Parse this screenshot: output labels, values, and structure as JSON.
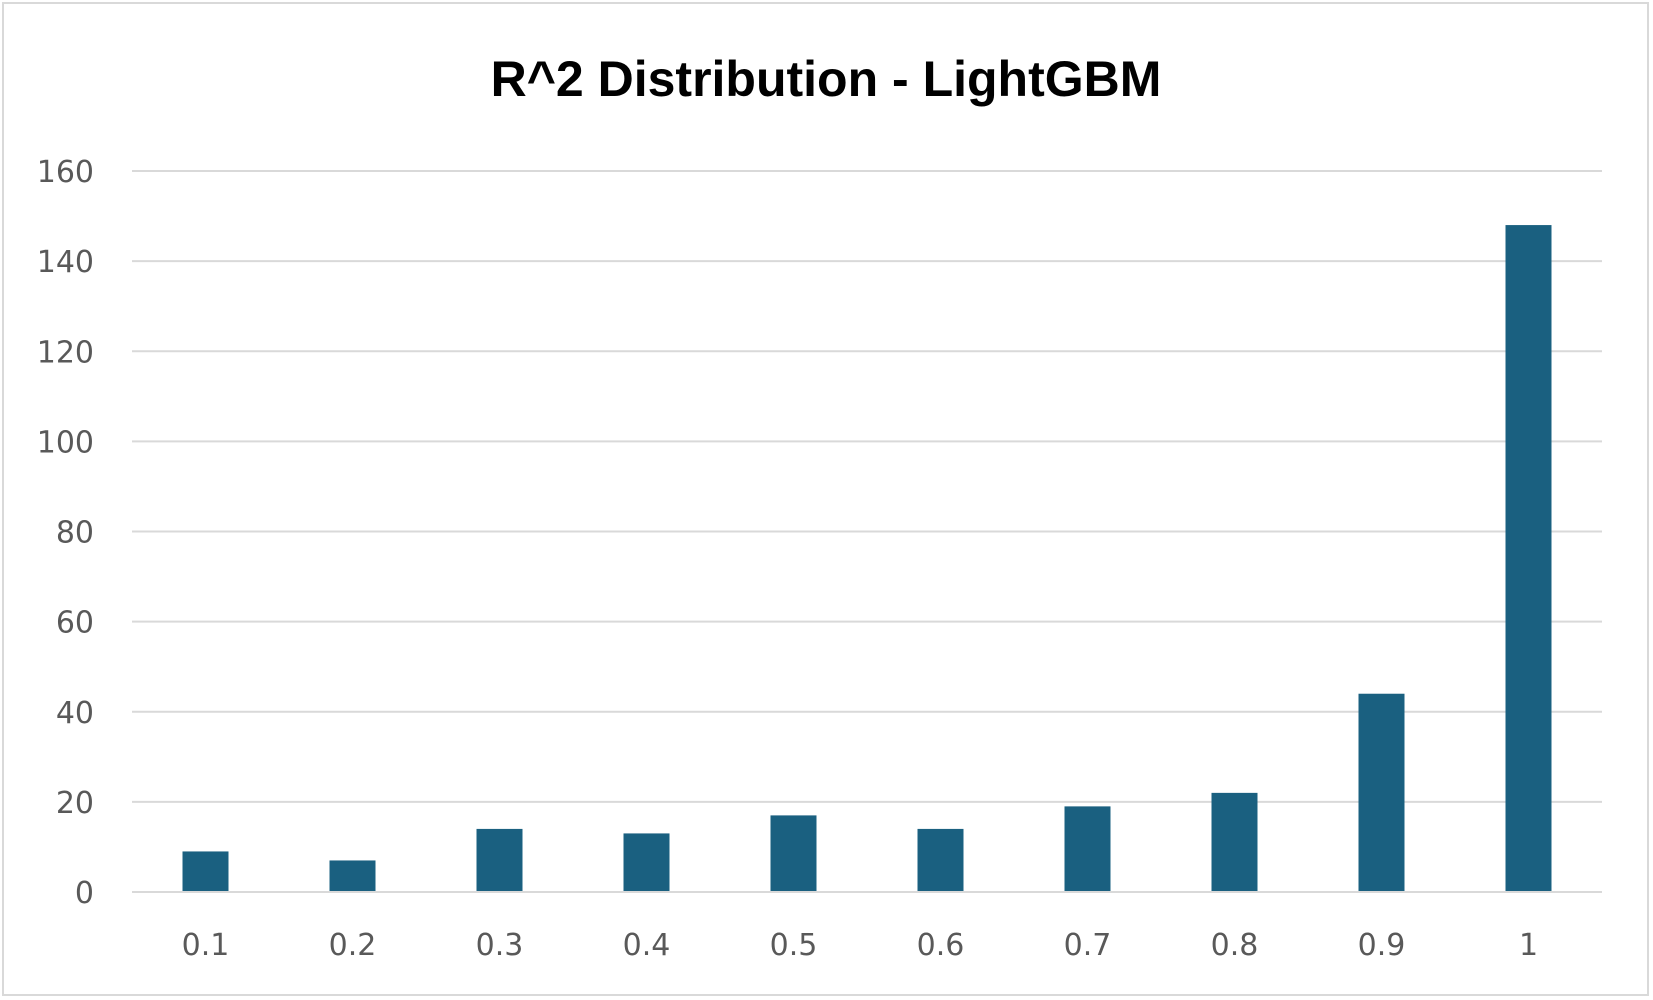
{
  "chart_data": {
    "type": "bar",
    "title": "R^2 Distribution - LightGBM",
    "xlabel": "",
    "ylabel": "",
    "categories": [
      "0.1",
      "0.2",
      "0.3",
      "0.4",
      "0.5",
      "0.6",
      "0.7",
      "0.8",
      "0.9",
      "1"
    ],
    "values": [
      9,
      7,
      14,
      13,
      17,
      14,
      19,
      22,
      44,
      148
    ],
    "ylim": [
      0,
      160
    ],
    "yticks": [
      "0",
      "20",
      "40",
      "60",
      "80",
      "100",
      "120",
      "140",
      "160"
    ],
    "grid": true,
    "legend": "none",
    "bar_color": "#1a6080"
  }
}
